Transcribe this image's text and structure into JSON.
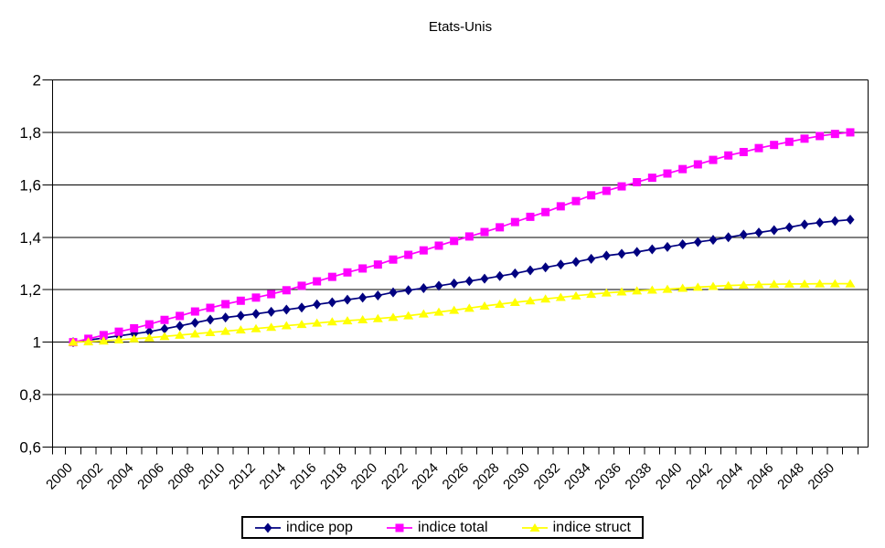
{
  "title": "Etats-Unis",
  "chart_data": {
    "type": "line",
    "title": "Etats-Unis",
    "xlabel": "",
    "ylabel": "",
    "ylim": [
      0.6,
      2
    ],
    "grid": "horizontal",
    "legend_position": "bottom",
    "background_color": "#FFFFFF",
    "axis_color": "#000000",
    "x": [
      2000,
      2001,
      2002,
      2003,
      2004,
      2005,
      2006,
      2007,
      2008,
      2009,
      2010,
      2011,
      2012,
      2013,
      2014,
      2015,
      2016,
      2017,
      2018,
      2019,
      2020,
      2021,
      2022,
      2023,
      2024,
      2025,
      2026,
      2027,
      2028,
      2029,
      2030,
      2031,
      2032,
      2033,
      2034,
      2035,
      2036,
      2037,
      2038,
      2039,
      2040,
      2041,
      2042,
      2043,
      2044,
      2045,
      2046,
      2047,
      2048,
      2049,
      2050,
      2051
    ],
    "x_tick_labels": [
      "2000",
      "2002",
      "2004",
      "2006",
      "2008",
      "2010",
      "2012",
      "2014",
      "2016",
      "2018",
      "2020",
      "2022",
      "2024",
      "2026",
      "2028",
      "2030",
      "2032",
      "2034",
      "2036",
      "2038",
      "2040",
      "2042",
      "2044",
      "2046",
      "2048",
      "2050"
    ],
    "y_ticks": [
      0.6,
      0.8,
      1,
      1.2,
      1.4,
      1.6,
      1.8,
      2
    ],
    "y_tick_labels": [
      "0,6",
      "0,8",
      "1",
      "1,2",
      "1,4",
      "1,6",
      "1,8",
      "2"
    ],
    "series": [
      {
        "name": "indice pop",
        "color": "#000080",
        "marker": "diamond",
        "values": [
          1.0,
          1.008,
          1.016,
          1.024,
          1.032,
          1.04,
          1.051,
          1.062,
          1.074,
          1.086,
          1.094,
          1.101,
          1.108,
          1.116,
          1.124,
          1.132,
          1.144,
          1.152,
          1.162,
          1.17,
          1.178,
          1.19,
          1.198,
          1.206,
          1.215,
          1.224,
          1.233,
          1.242,
          1.252,
          1.262,
          1.274,
          1.285,
          1.296,
          1.306,
          1.318,
          1.33,
          1.337,
          1.344,
          1.354,
          1.363,
          1.373,
          1.382,
          1.39,
          1.4,
          1.41,
          1.418,
          1.427,
          1.438,
          1.449,
          1.456,
          1.462,
          1.467
        ]
      },
      {
        "name": "indice total",
        "color": "#FF00FF",
        "marker": "square",
        "values": [
          1.0,
          1.013,
          1.027,
          1.04,
          1.053,
          1.068,
          1.085,
          1.1,
          1.117,
          1.131,
          1.145,
          1.158,
          1.17,
          1.183,
          1.198,
          1.215,
          1.232,
          1.249,
          1.266,
          1.281,
          1.296,
          1.315,
          1.333,
          1.35,
          1.368,
          1.386,
          1.403,
          1.42,
          1.438,
          1.458,
          1.478,
          1.496,
          1.518,
          1.538,
          1.56,
          1.577,
          1.594,
          1.61,
          1.627,
          1.643,
          1.66,
          1.678,
          1.695,
          1.712,
          1.725,
          1.74,
          1.752,
          1.764,
          1.776,
          1.786,
          1.794,
          1.8
        ]
      },
      {
        "name": "indice struct",
        "color": "#FFFF00",
        "marker": "triangle",
        "values": [
          1.0,
          1.002,
          1.005,
          1.009,
          1.013,
          1.017,
          1.022,
          1.027,
          1.032,
          1.037,
          1.042,
          1.047,
          1.052,
          1.057,
          1.063,
          1.068,
          1.073,
          1.078,
          1.082,
          1.086,
          1.09,
          1.095,
          1.101,
          1.108,
          1.115,
          1.122,
          1.13,
          1.138,
          1.145,
          1.152,
          1.158,
          1.165,
          1.171,
          1.177,
          1.183,
          1.188,
          1.192,
          1.196,
          1.199,
          1.202,
          1.206,
          1.21,
          1.213,
          1.216,
          1.218,
          1.22,
          1.221,
          1.222,
          1.222,
          1.223,
          1.223,
          1.223
        ]
      }
    ]
  }
}
